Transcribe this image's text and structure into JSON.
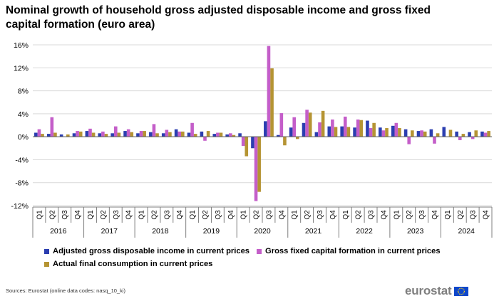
{
  "title": "Nominal growth of household gross adjusted disposable income and gross fixed capital formation (euro area)",
  "source": "Sources: Eurostat (online data codes: nasq_10_ki)",
  "brand": "eurostat",
  "colors": {
    "s0": "#2b3eb0",
    "s1": "#c45ec9",
    "s2": "#b59433",
    "grid": "#d9d9d9",
    "axis": "#7f7f7f"
  },
  "legend": {
    "s0": "Adjusted gross disposable income in current prices",
    "s1": "Gross fixed capital formation in current prices",
    "s2": "Actual final consumption in current prices"
  },
  "chart_data": {
    "type": "bar",
    "title": "Nominal growth of household gross adjusted disposable income and gross fixed capital formation (euro area)",
    "xlabel": "",
    "ylabel": "",
    "ylim": [
      -12,
      16
    ],
    "yticks": [
      "-12%",
      "-8%",
      "-4%",
      "0%",
      "4%",
      "8%",
      "12%",
      "16%"
    ],
    "years": [
      "2016",
      "2017",
      "2018",
      "2019",
      "2020",
      "2021",
      "2022",
      "2023",
      "2024"
    ],
    "categories": [
      "Q1",
      "Q2",
      "Q3",
      "Q4",
      "Q1",
      "Q2",
      "Q3",
      "Q4",
      "Q1",
      "Q2",
      "Q3",
      "Q4",
      "Q1",
      "Q2",
      "Q3",
      "Q4",
      "Q1",
      "Q2",
      "Q3",
      "Q4",
      "Q1",
      "Q2",
      "Q3",
      "Q4",
      "Q1",
      "Q2",
      "Q3",
      "Q4",
      "Q1",
      "Q2",
      "Q3",
      "Q4",
      "Q1",
      "Q2",
      "Q3",
      "Q4"
    ],
    "series": [
      {
        "name": "Adjusted gross disposable income in current prices",
        "values": [
          0.7,
          0.5,
          0.4,
          0.6,
          1.0,
          0.6,
          0.6,
          1.0,
          0.6,
          0.8,
          0.6,
          1.3,
          0.7,
          0.9,
          0.5,
          0.4,
          0.6,
          -2.0,
          2.7,
          0.3,
          1.6,
          2.4,
          0.8,
          1.8,
          1.8,
          1.6,
          2.8,
          1.6,
          1.9,
          1.3,
          1.0,
          1.3,
          1.7,
          0.9,
          0.8,
          0.9
        ]
      },
      {
        "name": "Gross fixed capital formation in current prices",
        "values": [
          1.3,
          3.4,
          0.0,
          1.0,
          1.4,
          0.9,
          1.8,
          1.3,
          1.0,
          2.2,
          1.2,
          0.9,
          2.4,
          -0.7,
          0.7,
          0.6,
          -1.6,
          -11.2,
          15.8,
          4.1,
          3.4,
          4.7,
          2.5,
          3.0,
          3.5,
          3.0,
          1.5,
          1.1,
          2.4,
          -1.3,
          1.1,
          -1.2,
          0.0,
          -0.6,
          -0.4,
          0.7
        ]
      },
      {
        "name": "Actual final consumption in current prices",
        "values": [
          0.5,
          0.7,
          0.4,
          0.9,
          0.7,
          0.5,
          0.7,
          0.8,
          1.0,
          0.6,
          0.8,
          0.9,
          0.5,
          1.0,
          0.7,
          0.3,
          -3.4,
          -9.6,
          11.9,
          -1.5,
          -0.4,
          4.2,
          4.5,
          1.7,
          1.7,
          2.9,
          2.4,
          1.5,
          1.5,
          1.1,
          0.9,
          0.6,
          1.2,
          0.5,
          1.1,
          1.0
        ]
      }
    ]
  }
}
